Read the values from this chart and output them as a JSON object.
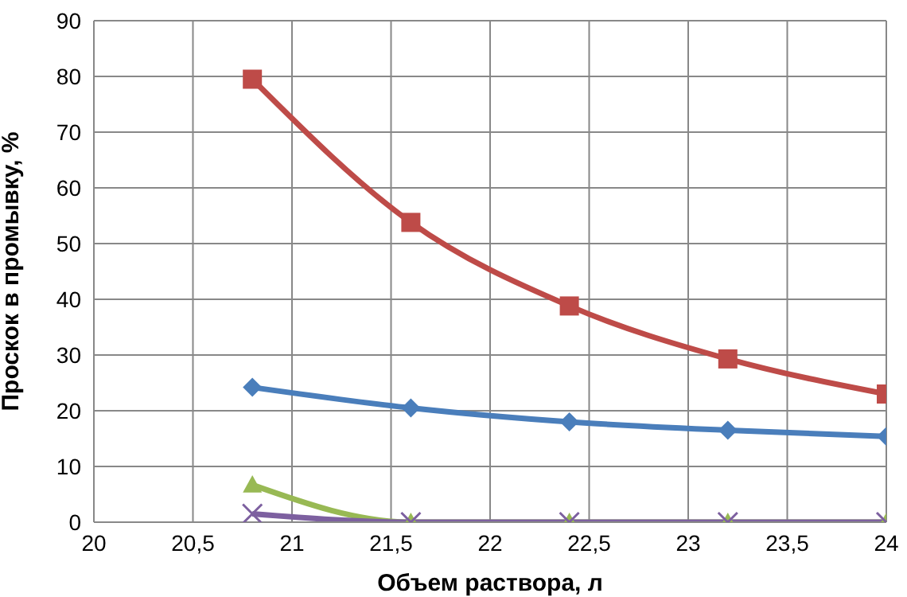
{
  "chart_data": {
    "type": "line",
    "xlabel": "Объем раствора, л",
    "ylabel": "Проскок в промывку, %",
    "x": [
      20.8,
      21.6,
      22.4,
      23.2,
      24
    ],
    "series": [
      {
        "color": "#4a7ebb",
        "marker": "diamond",
        "values": [
          24.2,
          20.5,
          18,
          16.5,
          15.4
        ]
      },
      {
        "color": "#be4b48",
        "marker": "square",
        "values": [
          79.5,
          53.8,
          38.8,
          29.3,
          23
        ]
      },
      {
        "color": "#98b954",
        "marker": "triangle",
        "values": [
          6.7,
          0,
          0,
          0,
          0
        ]
      },
      {
        "color": "#7d60a0",
        "marker": "cross",
        "values": [
          1.5,
          0,
          0,
          0,
          0
        ]
      }
    ],
    "xlim": [
      20,
      24
    ],
    "xticks": [
      20,
      {
        "value": 20.5,
        "label": "20,5"
      },
      21,
      {
        "value": 21.5,
        "label": "21,5"
      },
      22,
      {
        "value": 22.5,
        "label": "22,5"
      },
      23,
      {
        "value": 23.5,
        "label": "23,5"
      },
      24
    ],
    "ylim": [
      0,
      90
    ],
    "yticks": [
      0,
      10,
      20,
      30,
      40,
      50,
      60,
      70,
      80,
      90
    ],
    "grid": true,
    "legend": false,
    "line_style": "solid"
  }
}
